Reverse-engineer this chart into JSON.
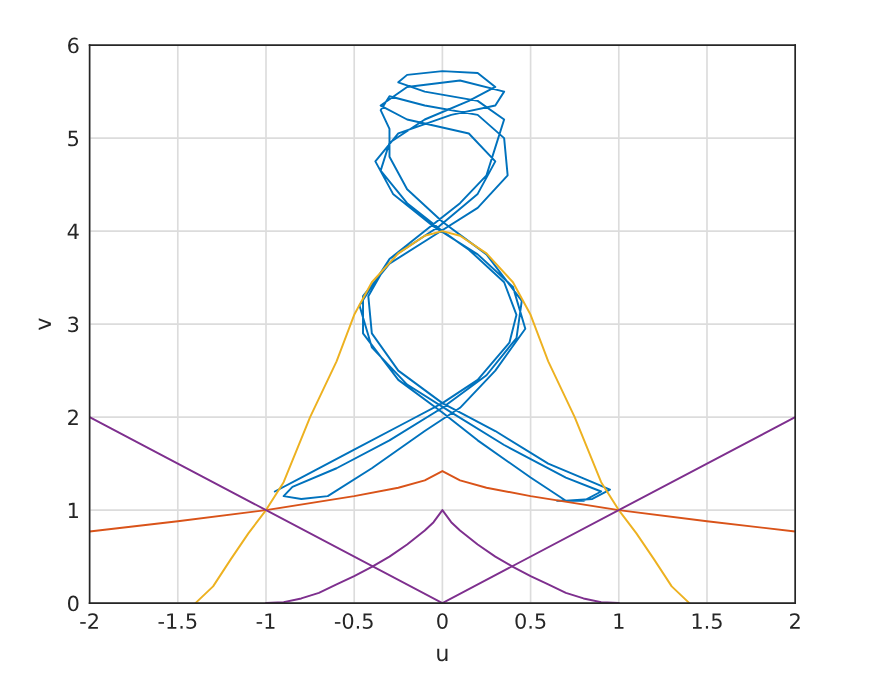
{
  "chart_data": {
    "type": "line",
    "xlabel": "u",
    "ylabel": "v",
    "xlim": [
      -2,
      2
    ],
    "ylim": [
      0,
      6
    ],
    "xticks": [
      -2,
      -1.5,
      -1,
      -0.5,
      0,
      0.5,
      1,
      1.5,
      2
    ],
    "yticks": [
      0,
      1,
      2,
      3,
      4,
      5,
      6
    ],
    "grid": true,
    "marker": "none",
    "line_style": "solid",
    "series": [
      {
        "color": "#0072bd",
        "x": [
          -0.95,
          -0.8,
          -0.5,
          -0.2,
          0,
          0.2,
          0.38,
          0.42,
          0.35,
          0.15,
          0,
          -0.2,
          -0.35,
          -0.3,
          -0.1,
          0.15,
          0.3,
          0.2,
          0,
          -0.2,
          -0.25,
          -0.1,
          0.2,
          0.35,
          0.3,
          0.25,
          0.1,
          -0.1,
          -0.3,
          -0.42,
          -0.4,
          -0.25,
          0,
          0.3,
          0.6,
          0.85,
          0.95,
          0.85,
          0.7,
          0.5,
          0.2,
          0,
          -0.25,
          -0.45,
          -0.45,
          -0.3,
          -0.05,
          0.2,
          0.37,
          0.35,
          0.2,
          -0.1,
          -0.3,
          -0.35,
          -0.3,
          -0.3,
          -0.2,
          0,
          0.25,
          0.45,
          0.42,
          0.25,
          0,
          -0.3,
          -0.6,
          -0.85,
          -0.9,
          -0.8,
          -0.65,
          -0.4,
          -0.1,
          0.1,
          0.3,
          0.47,
          0.4,
          0.2,
          -0.05,
          -0.28,
          -0.38,
          -0.25,
          0.05,
          0.3,
          0.35,
          0.1,
          -0.2,
          -0.35,
          -0.2,
          0.15,
          0.3,
          0.2,
          -0.02,
          -0.3,
          -0.47,
          -0.4,
          -0.2,
          0.05,
          0.35,
          0.7,
          0.9,
          0.8,
          0.65
        ],
        "values": [
          1.2,
          1.35,
          1.65,
          1.95,
          2.15,
          2.4,
          2.8,
          3.1,
          3.45,
          3.8,
          4.0,
          4.3,
          4.65,
          4.95,
          5.2,
          5.4,
          5.55,
          5.7,
          5.72,
          5.68,
          5.6,
          5.5,
          5.4,
          5.2,
          4.9,
          4.6,
          4.3,
          4.0,
          3.7,
          3.3,
          2.9,
          2.5,
          2.15,
          1.85,
          1.5,
          1.3,
          1.22,
          1.12,
          1.1,
          1.35,
          1.75,
          2.05,
          2.4,
          2.9,
          3.3,
          3.65,
          3.95,
          4.25,
          4.6,
          5.0,
          5.25,
          5.35,
          5.45,
          5.3,
          5.1,
          4.8,
          4.45,
          4.1,
          3.75,
          3.25,
          2.85,
          2.45,
          2.1,
          1.75,
          1.45,
          1.25,
          1.15,
          1.12,
          1.15,
          1.45,
          1.85,
          2.1,
          2.5,
          2.95,
          3.4,
          3.75,
          4.05,
          4.4,
          4.75,
          5.05,
          5.25,
          5.35,
          5.5,
          5.62,
          5.55,
          5.35,
          5.2,
          5.05,
          4.75,
          4.4,
          4.05,
          3.7,
          3.2,
          2.75,
          2.35,
          2.05,
          1.7,
          1.35,
          1.2,
          1.1,
          1.1
        ]
      },
      {
        "color": "#d95319",
        "x": [
          -2,
          -1.5,
          -1,
          -0.5,
          -0.25,
          -0.1,
          0,
          0.1,
          0.25,
          0.5,
          1,
          1.5,
          2
        ],
        "values": [
          0.77,
          0.88,
          1.0,
          1.15,
          1.24,
          1.32,
          1.42,
          1.32,
          1.24,
          1.15,
          1.0,
          0.88,
          0.77
        ]
      },
      {
        "color": "#edb120",
        "x": [
          -1.4,
          -1.3,
          -1.2,
          -1.1,
          -1,
          -0.9,
          -0.75,
          -0.6,
          -0.5,
          -0.4,
          -0.25,
          -0.1,
          0,
          0.1,
          0.25,
          0.4,
          0.5,
          0.6,
          0.75,
          0.9,
          1,
          1.1,
          1.2,
          1.3,
          1.4
        ],
        "values": [
          0,
          0.18,
          0.47,
          0.75,
          1.0,
          1.3,
          2.0,
          2.6,
          3.1,
          3.45,
          3.76,
          3.95,
          4.0,
          3.95,
          3.76,
          3.45,
          3.1,
          2.6,
          2.0,
          1.3,
          1.0,
          0.75,
          0.47,
          0.18,
          0
        ]
      },
      {
        "color": "#7e2f8e",
        "x": [
          -2,
          0,
          2
        ],
        "values": [
          2,
          0,
          2
        ]
      },
      {
        "color": "#7e2f8e",
        "x": [
          -1,
          -0.9,
          -0.8,
          -0.7,
          -0.6,
          -0.5,
          -0.4,
          -0.3,
          -0.2,
          -0.1,
          -0.05,
          0,
          0.05,
          0.1,
          0.2,
          0.3,
          0.4,
          0.5,
          0.6,
          0.7,
          0.8,
          0.9,
          1
        ],
        "values": [
          0,
          0.01,
          0.05,
          0.11,
          0.2,
          0.29,
          0.39,
          0.5,
          0.63,
          0.78,
          0.87,
          1.0,
          0.87,
          0.78,
          0.63,
          0.5,
          0.39,
          0.29,
          0.2,
          0.11,
          0.05,
          0.01,
          0
        ]
      }
    ]
  }
}
